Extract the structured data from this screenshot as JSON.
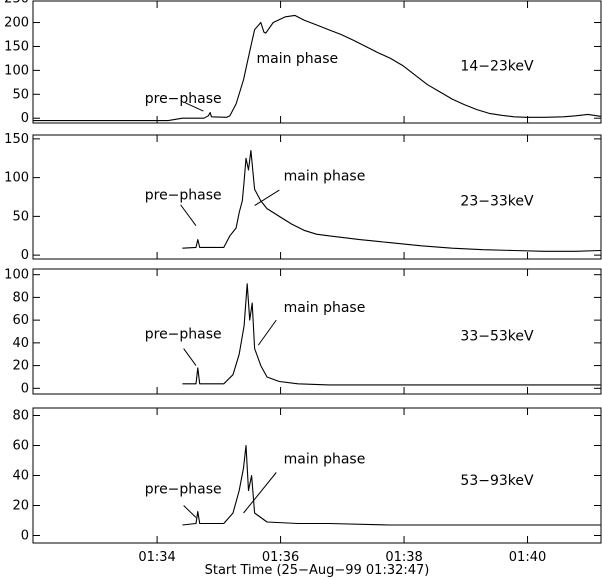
{
  "chart_data": [
    {
      "type": "line",
      "band_label": "14−23keV",
      "annotations": [
        {
          "text": "pre−phase",
          "x": 1.02,
          "y": 32
        },
        {
          "text": "main phase",
          "x": 2.83,
          "y": 115
        }
      ],
      "arrows": [
        {
          "from": [
            1.68,
            32
          ],
          "to": [
            1.97,
            15
          ]
        }
      ],
      "ylim": [
        -10,
        245
      ],
      "yticks": [
        0,
        50,
        100,
        150,
        200,
        250
      ],
      "ytick_labels": [
        "0",
        "50",
        "100",
        "150",
        "200",
        "250"
      ],
      "series": [
        {
          "values": [
            [
              -0.79,
              -5
            ],
            [
              1.4,
              -5
            ],
            [
              1.63,
              0
            ],
            [
              1.98,
              0
            ],
            [
              2.05,
              5
            ],
            [
              2.08,
              12
            ],
            [
              2.1,
              3
            ],
            [
              2.35,
              2
            ],
            [
              2.4,
              5
            ],
            [
              2.5,
              30
            ],
            [
              2.62,
              80
            ],
            [
              2.73,
              145
            ],
            [
              2.8,
              185
            ],
            [
              2.9,
              200
            ],
            [
              2.95,
              180
            ],
            [
              2.98,
              178
            ],
            [
              3.1,
              200
            ],
            [
              3.3,
              212
            ],
            [
              3.45,
              215
            ],
            [
              3.6,
              205
            ],
            [
              3.8,
              195
            ],
            [
              4.0,
              185
            ],
            [
              4.2,
              175
            ],
            [
              4.4,
              163
            ],
            [
              4.6,
              150
            ],
            [
              4.8,
              137
            ],
            [
              5.0,
              125
            ],
            [
              5.2,
              110
            ],
            [
              5.4,
              90
            ],
            [
              5.6,
              70
            ],
            [
              5.8,
              55
            ],
            [
              6.0,
              40
            ],
            [
              6.2,
              28
            ],
            [
              6.4,
              18
            ],
            [
              6.6,
              10
            ],
            [
              6.8,
              6
            ],
            [
              7.0,
              3
            ],
            [
              7.2,
              2
            ],
            [
              7.5,
              2
            ],
            [
              7.8,
              3
            ],
            [
              8.0,
              5
            ],
            [
              8.2,
              8
            ],
            [
              8.4,
              4
            ]
          ]
        }
      ]
    },
    {
      "type": "line",
      "band_label": "23−33keV",
      "annotations": [
        {
          "text": "pre−phase",
          "x": 1.02,
          "y": 72
        },
        {
          "text": "main phase",
          "x": 3.27,
          "y": 96
        }
      ],
      "arrows": [
        {
          "from": [
            1.6,
            65
          ],
          "to": [
            1.85,
            38
          ]
        },
        {
          "from": [
            3.2,
            84
          ],
          "to": [
            2.8,
            64
          ]
        }
      ],
      "ylim": [
        -5,
        155
      ],
      "yticks": [
        0,
        50,
        100,
        150
      ],
      "ytick_labels": [
        "0",
        "50",
        "100",
        "150"
      ],
      "series": [
        {
          "values": [
            [
              1.63,
              null
            ],
            [
              1.63,
              9
            ],
            [
              1.85,
              10
            ],
            [
              1.88,
              20
            ],
            [
              1.91,
              10
            ],
            [
              2.3,
              10
            ],
            [
              2.4,
              25
            ],
            [
              2.5,
              35
            ],
            [
              2.55,
              55
            ],
            [
              2.6,
              70
            ],
            [
              2.63,
              95
            ],
            [
              2.66,
              125
            ],
            [
              2.7,
              110
            ],
            [
              2.74,
              135
            ],
            [
              2.8,
              85
            ],
            [
              2.9,
              70
            ],
            [
              3.0,
              60
            ],
            [
              3.2,
              50
            ],
            [
              3.4,
              40
            ],
            [
              3.6,
              32
            ],
            [
              3.8,
              27
            ],
            [
              4.0,
              25
            ],
            [
              4.5,
              20
            ],
            [
              5.0,
              16
            ],
            [
              5.5,
              12
            ],
            [
              6.0,
              9
            ],
            [
              6.5,
              7
            ],
            [
              7.0,
              6
            ],
            [
              7.5,
              5
            ],
            [
              8.0,
              5
            ],
            [
              8.4,
              6
            ]
          ]
        }
      ]
    },
    {
      "type": "line",
      "band_label": "33−53keV",
      "annotations": [
        {
          "text": "pre−phase",
          "x": 1.02,
          "y": 44
        },
        {
          "text": "main phase",
          "x": 3.27,
          "y": 67
        }
      ],
      "arrows": [
        {
          "from": [
            1.65,
            35
          ],
          "to": [
            1.85,
            20
          ]
        },
        {
          "from": [
            3.15,
            60
          ],
          "to": [
            2.86,
            38
          ]
        }
      ],
      "ylim": [
        -5,
        105
      ],
      "yticks": [
        0,
        20,
        40,
        60,
        80,
        100
      ],
      "ytick_labels": [
        "0",
        "20",
        "40",
        "60",
        "80",
        "100"
      ],
      "series": [
        {
          "values": [
            [
              1.63,
              null
            ],
            [
              1.63,
              4
            ],
            [
              1.85,
              4
            ],
            [
              1.88,
              18
            ],
            [
              1.91,
              4
            ],
            [
              2.3,
              4
            ],
            [
              2.45,
              12
            ],
            [
              2.55,
              30
            ],
            [
              2.63,
              55
            ],
            [
              2.68,
              92
            ],
            [
              2.72,
              60
            ],
            [
              2.76,
              75
            ],
            [
              2.8,
              35
            ],
            [
              2.9,
              20
            ],
            [
              3.0,
              10
            ],
            [
              3.2,
              6
            ],
            [
              3.5,
              4
            ],
            [
              4.0,
              3
            ],
            [
              5.0,
              3
            ],
            [
              6.0,
              3
            ],
            [
              7.0,
              3
            ],
            [
              8.4,
              3
            ]
          ]
        }
      ]
    },
    {
      "type": "line",
      "band_label": "53−93keV",
      "annotations": [
        {
          "text": "pre−phase",
          "x": 1.02,
          "y": 28
        },
        {
          "text": "main phase",
          "x": 3.27,
          "y": 48
        }
      ],
      "arrows": [
        {
          "from": [
            1.65,
            20
          ],
          "to": [
            1.85,
            12
          ]
        },
        {
          "from": [
            3.15,
            42
          ],
          "to": [
            2.62,
            15
          ]
        }
      ],
      "ylim": [
        -5,
        85
      ],
      "yticks": [
        0,
        20,
        40,
        60,
        80
      ],
      "ytick_labels": [
        "0",
        "20",
        "40",
        "60",
        "80"
      ],
      "series": [
        {
          "values": [
            [
              1.63,
              null
            ],
            [
              1.63,
              7
            ],
            [
              1.85,
              8
            ],
            [
              1.88,
              16
            ],
            [
              1.91,
              8
            ],
            [
              2.3,
              8
            ],
            [
              2.45,
              15
            ],
            [
              2.55,
              30
            ],
            [
              2.62,
              45
            ],
            [
              2.66,
              60
            ],
            [
              2.7,
              30
            ],
            [
              2.75,
              40
            ],
            [
              2.8,
              15
            ],
            [
              3.0,
              9
            ],
            [
              3.5,
              8
            ],
            [
              4.0,
              8
            ],
            [
              5.0,
              7
            ],
            [
              6.0,
              7
            ],
            [
              7.0,
              7
            ],
            [
              8.4,
              7
            ]
          ]
        }
      ]
    }
  ],
  "shared_x": {
    "unit": "minutes after Start Time",
    "xlim": [
      -0.79,
      8.41
    ],
    "xticks": [
      1.22,
      3.22,
      5.22,
      7.22
    ],
    "xtick_labels": [
      "01:34",
      "01:36",
      "01:38",
      "01:40"
    ],
    "xlabel": "Start Time (25−Aug−99 01:32:47)"
  }
}
